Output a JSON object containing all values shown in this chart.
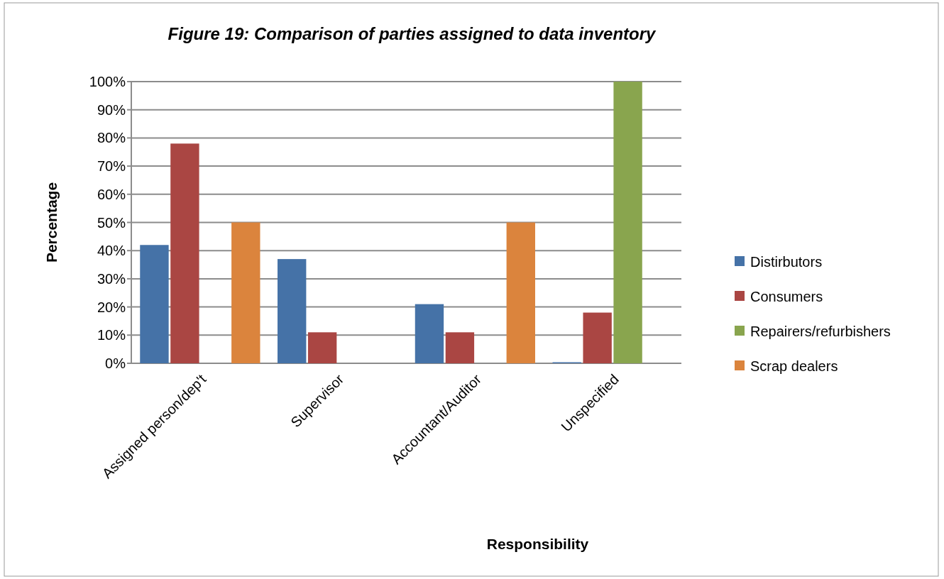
{
  "chart_data": {
    "type": "bar",
    "title": "Figure 19: Comparison of parties assigned to data inventory",
    "xlabel": "Responsibility",
    "ylabel": "Percentage",
    "categories": [
      "Assigned person/dep't",
      "Supervisor",
      "Accountant/Auditor",
      "Unspecified"
    ],
    "series": [
      {
        "name": "Distirbutors",
        "color": "#4572a7",
        "values": [
          42,
          37,
          21,
          0
        ]
      },
      {
        "name": "Consumers",
        "color": "#aa4643",
        "values": [
          78,
          11,
          11,
          18
        ]
      },
      {
        "name": "Repairers/refurbishers",
        "color": "#89a54e",
        "values": [
          null,
          null,
          null,
          100
        ]
      },
      {
        "name": "Scrap dealers",
        "color": "#db843d",
        "values": [
          50,
          null,
          50,
          null
        ]
      }
    ],
    "ylim": [
      0,
      100
    ],
    "yticks": [
      {
        "value": 0,
        "label": "0%"
      },
      {
        "value": 10,
        "label": "10%"
      },
      {
        "value": 20,
        "label": "20%"
      },
      {
        "value": 30,
        "label": "30%"
      },
      {
        "value": 40,
        "label": "40%"
      },
      {
        "value": 50,
        "label": "50%"
      },
      {
        "value": 60,
        "label": "60%"
      },
      {
        "value": 70,
        "label": "70%"
      },
      {
        "value": 80,
        "label": "80%"
      },
      {
        "value": 90,
        "label": "90%"
      },
      {
        "value": 100,
        "label": "100%"
      }
    ],
    "grid": "y",
    "legend": "right"
  }
}
